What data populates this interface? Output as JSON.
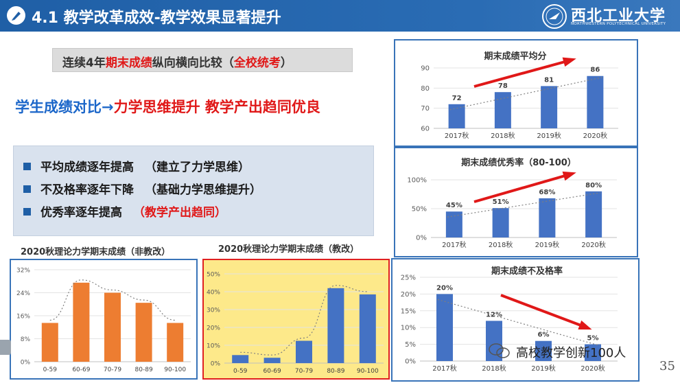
{
  "header": {
    "title": "4.1 教学改革成效-教学效果显著提升",
    "logo_text": "西北工业大学",
    "logo_sub": "NORTHWESTERN POLYTECHNICAL UNIVERSITY",
    "bg_color": "#1f5fa6"
  },
  "subtitle": {
    "part1": "连续4年",
    "part2": "期末成绩",
    "part3": "纵向横向比较（",
    "part4": "全校统考",
    "part5": "）"
  },
  "headline": {
    "part1": "学生成绩对比→",
    "part2": "力学思维提升  教学产出趋同优良"
  },
  "bullets": [
    {
      "text": "平均成绩逐年提高",
      "note": "（建立了力学思维）",
      "note_red": false
    },
    {
      "text": "不及格率逐年下降",
      "note": "（基础力学思维提升）",
      "note_red": false
    },
    {
      "text": "优秀率逐年提高",
      "note": "（教学产出趋同）",
      "note_red": true
    }
  ],
  "chart_data": [
    {
      "id": "avg",
      "type": "bar",
      "title": "期末成绩平均分",
      "categories": [
        "2017秋",
        "2018秋",
        "2019秋",
        "2020秋"
      ],
      "values": [
        72,
        78,
        81,
        86
      ],
      "value_labels": [
        "72",
        "78",
        "81",
        "86"
      ],
      "ylim": [
        60,
        90
      ],
      "yticks": [
        "60",
        "70",
        "80",
        "90"
      ],
      "trendline": true,
      "color": "#4472c4"
    },
    {
      "id": "excellent",
      "type": "bar",
      "title": "期末成绩优秀率（80-100）",
      "categories": [
        "2017秋",
        "2018秋",
        "2019秋",
        "2020秋"
      ],
      "values": [
        45,
        51,
        68,
        80
      ],
      "value_labels": [
        "45%",
        "51%",
        "68%",
        "80%"
      ],
      "ylim": [
        0,
        100
      ],
      "yticks": [
        "0%",
        "50%",
        "100%"
      ],
      "trendline": true,
      "color": "#4472c4"
    },
    {
      "id": "fail",
      "type": "bar",
      "title": "期末成绩不及格率",
      "categories": [
        "2017秋",
        "2018秋",
        "2019秋",
        "2020秋"
      ],
      "values": [
        20,
        12,
        6,
        5
      ],
      "value_labels": [
        "20%",
        "12%",
        "6%",
        "5%"
      ],
      "ylim": [
        0,
        25
      ],
      "yticks": [
        "0%",
        "5%",
        "10%",
        "15%",
        "20%",
        "25%"
      ],
      "trendline": true,
      "color": "#4472c4"
    },
    {
      "id": "dist_old",
      "type": "bar",
      "title": "2020秋理论力学期末成绩（非教改）",
      "categories": [
        "0-59",
        "60-69",
        "70-79",
        "80-89",
        "90-100"
      ],
      "values": [
        13.5,
        27.5,
        24,
        20.5,
        13.5
      ],
      "ylim": [
        0,
        32
      ],
      "yticks": [
        "0%",
        "8%",
        "16%",
        "24%",
        "32%"
      ],
      "trendline": true,
      "color": "#ed7d31"
    },
    {
      "id": "dist_new",
      "type": "bar",
      "title": "2020秋理论力学期末成绩（教改）",
      "categories": [
        "0-59",
        "60-69",
        "70-79",
        "80-89",
        "90-100"
      ],
      "values": [
        4.5,
        3,
        12.5,
        42,
        38.5
      ],
      "ylim": [
        0,
        50
      ],
      "yticks": [
        "0%",
        "10%",
        "20%",
        "30%",
        "40%",
        "50%"
      ],
      "trendline": true,
      "color": "#4472c4"
    }
  ],
  "watermark": "高校教学创新100人",
  "page_number": "35"
}
